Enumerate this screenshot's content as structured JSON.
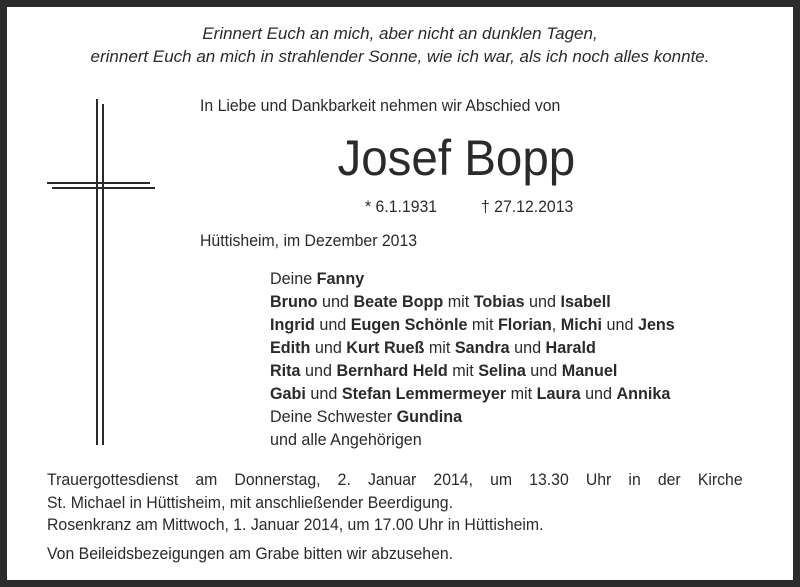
{
  "quote": [
    "Erinnert Euch an mich, aber nicht an dunklen Tagen,",
    "erinnert Euch an mich in strahlender Sonne, wie ich war, als ich noch alles konnte."
  ],
  "intro": "In Liebe und Dankbarkeit nehmen wir Abschied von",
  "name": "Josef Bopp",
  "born": "* 6.1.1931",
  "died": "† 27.12.2013",
  "place_date": "Hüttisheim, im Dezember 2013",
  "mourners": [
    [
      {
        "t": "Deine "
      },
      {
        "t": "Fanny",
        "b": true
      }
    ],
    [
      {
        "t": "Bruno",
        "b": true
      },
      {
        "t": " und "
      },
      {
        "t": "Beate Bopp",
        "b": true
      },
      {
        "t": " mit "
      },
      {
        "t": "Tobias",
        "b": true
      },
      {
        "t": " und "
      },
      {
        "t": "Isabell",
        "b": true
      }
    ],
    [
      {
        "t": "Ingrid",
        "b": true
      },
      {
        "t": " und "
      },
      {
        "t": "Eugen Schönle",
        "b": true
      },
      {
        "t": " mit "
      },
      {
        "t": "Florian",
        "b": true
      },
      {
        "t": ", "
      },
      {
        "t": "Michi",
        "b": true
      },
      {
        "t": " und "
      },
      {
        "t": "Jens",
        "b": true
      }
    ],
    [
      {
        "t": "Edith",
        "b": true
      },
      {
        "t": " und "
      },
      {
        "t": "Kurt Rueß",
        "b": true
      },
      {
        "t": " mit "
      },
      {
        "t": "Sandra",
        "b": true
      },
      {
        "t": " und "
      },
      {
        "t": "Harald",
        "b": true
      }
    ],
    [
      {
        "t": "Rita",
        "b": true
      },
      {
        "t": " und "
      },
      {
        "t": "Bernhard Held",
        "b": true
      },
      {
        "t": " mit "
      },
      {
        "t": "Selina",
        "b": true
      },
      {
        "t": " und "
      },
      {
        "t": "Manuel",
        "b": true
      }
    ],
    [
      {
        "t": "Gabi",
        "b": true
      },
      {
        "t": " und "
      },
      {
        "t": "Stefan Lemmermeyer",
        "b": true
      },
      {
        "t": " mit "
      },
      {
        "t": "Laura",
        "b": true
      },
      {
        "t": " und "
      },
      {
        "t": "Annika",
        "b": true
      }
    ],
    [
      {
        "t": "Deine Schwester "
      },
      {
        "t": "Gundina",
        "b": true
      }
    ],
    [
      {
        "t": "und alle Angehörigen"
      }
    ]
  ],
  "service": [
    "Trauergottesdienst am Donnerstag, 2. Januar 2014, um 13.30 Uhr in der Kirche",
    "St. Michael in Hüttisheim, mit anschließender Beerdigung.",
    "Rosenkranz am Mittwoch, 1. Januar 2014, um 17.00 Uhr in Hüttisheim."
  ],
  "closing": "Von Beileidsbezeigungen am Grabe bitten wir abzusehen."
}
